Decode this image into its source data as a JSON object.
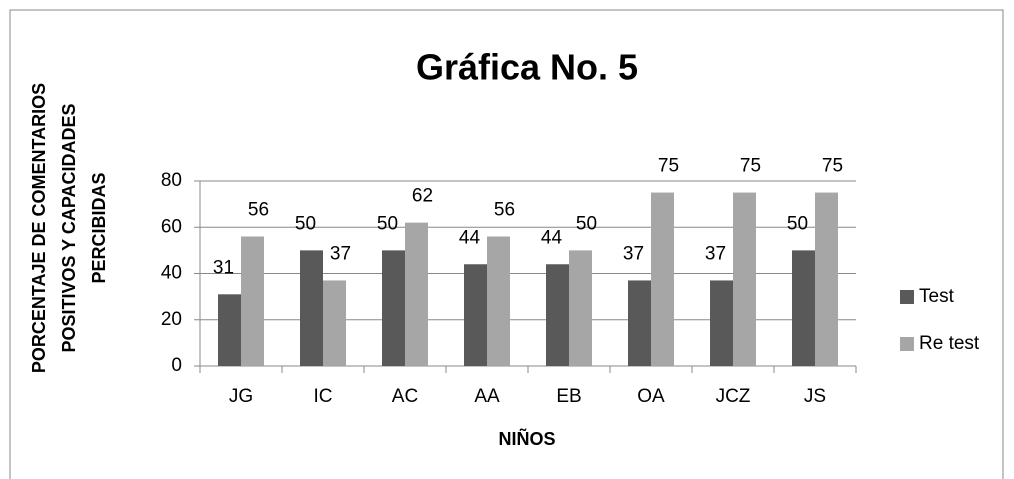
{
  "chart_data": {
    "type": "bar",
    "title": "Gráfica No. 5",
    "x_label": "NIÑOS",
    "y_label": [
      "PORCENTAJE DE COMENTARIOS",
      "POSITIVOS Y CAPACIDADES",
      "PERCIBIDAS"
    ],
    "categories": [
      "JG",
      "IC",
      "AC",
      "AA",
      "EB",
      "OA",
      "JCZ",
      "JS"
    ],
    "series": [
      {
        "name": "Test",
        "color": "#595959",
        "values": [
          31,
          50,
          50,
          44,
          44,
          37,
          37,
          50
        ]
      },
      {
        "name": "Re test",
        "color": "#a6a6a6",
        "values": [
          56,
          37,
          62,
          56,
          50,
          75,
          75,
          75
        ]
      }
    ],
    "ylim": [
      0,
      80
    ],
    "yticks": [
      0,
      20,
      40,
      60,
      80
    ],
    "grid": true,
    "legend": "right"
  }
}
